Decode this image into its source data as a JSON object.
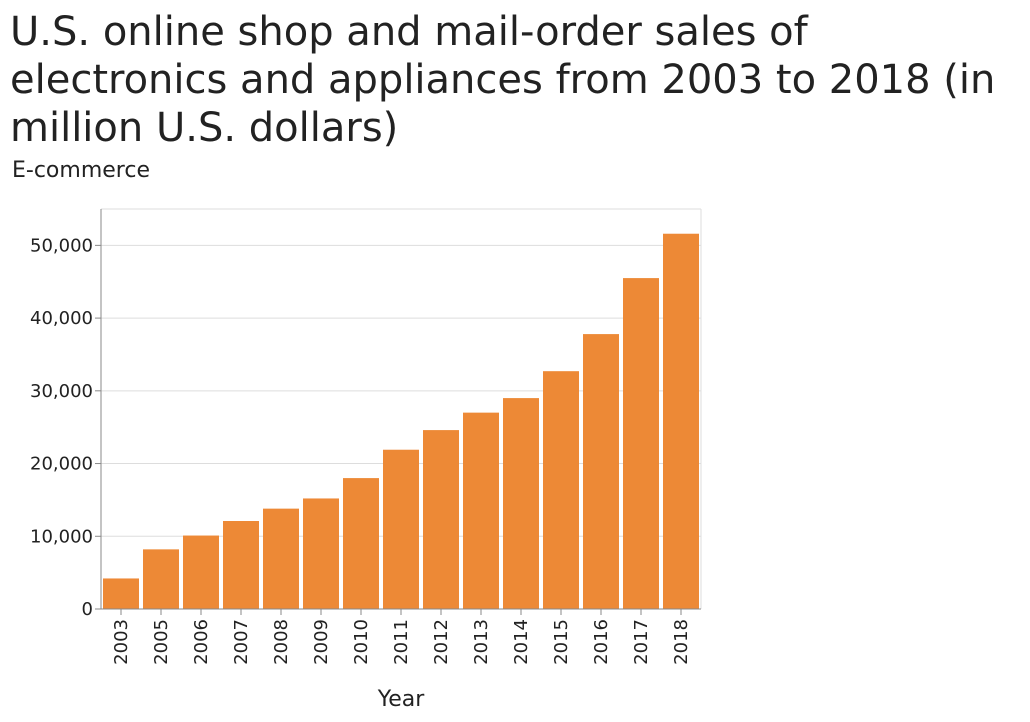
{
  "chart_data": {
    "type": "bar",
    "title": "U.S. online shop and mail-order sales of electronics and appliances from 2003 to 2018 (in million U.S. dollars)",
    "ylabel": "E-commerce",
    "xlabel": "Year",
    "categories": [
      "2003",
      "2005",
      "2006",
      "2007",
      "2008",
      "2009",
      "2010",
      "2011",
      "2012",
      "2013",
      "2014",
      "2015",
      "2016",
      "2017",
      "2018"
    ],
    "values": [
      4200,
      8200,
      10100,
      12100,
      13800,
      15200,
      18000,
      21900,
      24600,
      27000,
      29000,
      32700,
      37800,
      45500,
      51600
    ],
    "ylim": [
      0,
      55000
    ],
    "yticks": [
      0,
      10000,
      20000,
      30000,
      40000,
      50000
    ],
    "ytick_labels": [
      "0",
      "10,000",
      "20,000",
      "30,000",
      "40,000",
      "50,000"
    ],
    "grid": true,
    "bar_color": "#ed8936",
    "grid_color": "#dddddd",
    "axis_color": "#888888"
  }
}
